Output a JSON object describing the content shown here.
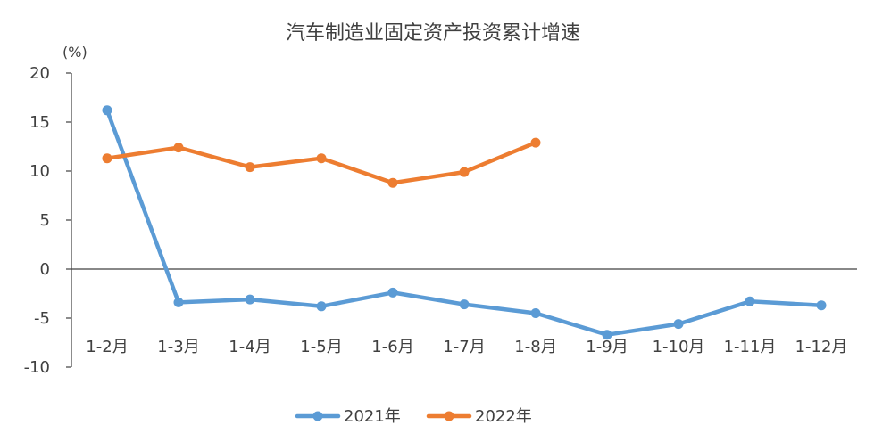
{
  "chart_data": {
    "type": "line",
    "title": "汽车制造业固定资产投资累计增速",
    "y_unit": "(%)",
    "categories": [
      "1-2月",
      "1-3月",
      "1-4月",
      "1-5月",
      "1-6月",
      "1-7月",
      "1-8月",
      "1-9月",
      "1-10月",
      "1-11月",
      "1-12月"
    ],
    "ylim": [
      -10,
      20
    ],
    "yticks": [
      -10,
      -5,
      0,
      5,
      10,
      15,
      20
    ],
    "grid": false,
    "legend_position": "bottom",
    "series": [
      {
        "name": "2021年",
        "color": "#5B9BD5",
        "values": [
          16.2,
          -3.4,
          -3.1,
          -3.8,
          -2.4,
          -3.6,
          -4.5,
          -6.7,
          -5.6,
          -3.3,
          -3.7
        ]
      },
      {
        "name": "2022年",
        "color": "#ED7D31",
        "values": [
          11.3,
          12.4,
          10.4,
          11.3,
          8.8,
          9.9,
          12.9,
          null,
          null,
          null,
          null
        ]
      }
    ]
  }
}
